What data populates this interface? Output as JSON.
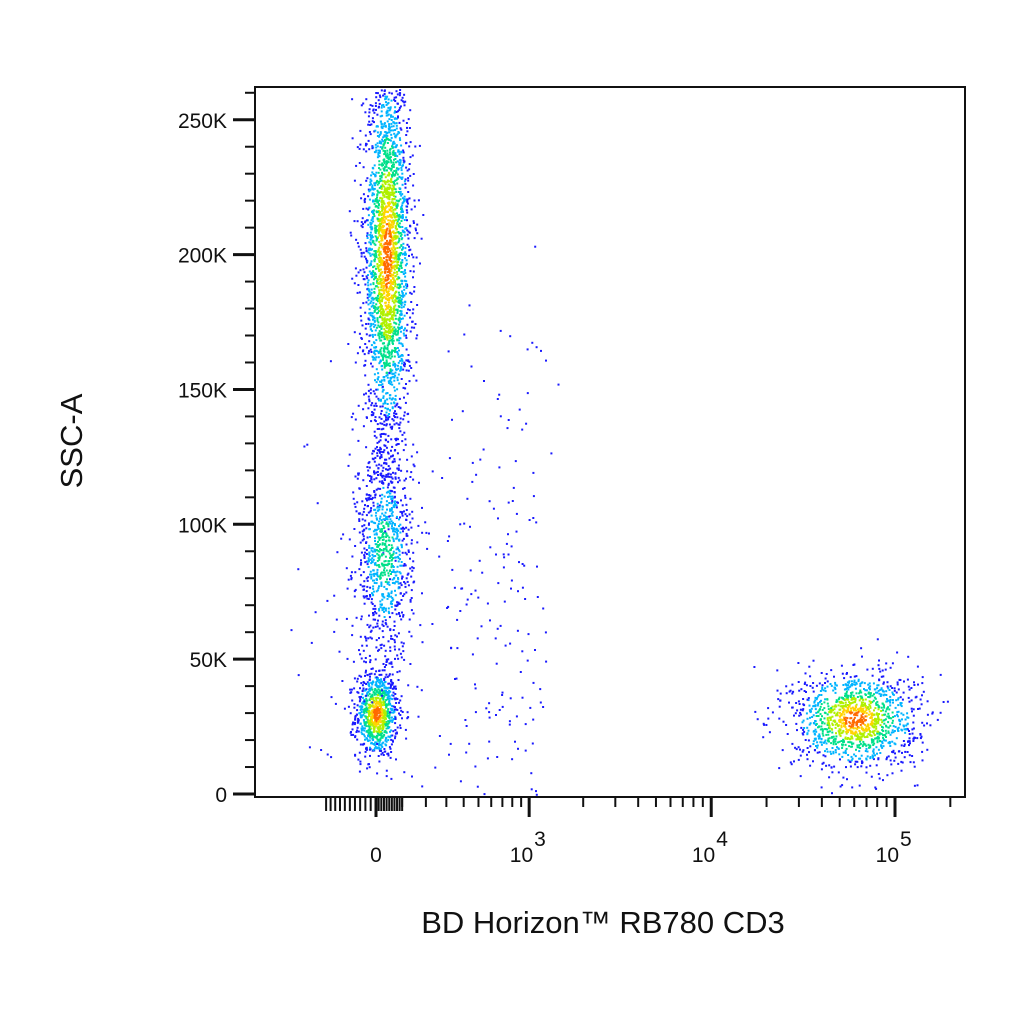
{
  "chart_data": {
    "type": "scatter",
    "title": "",
    "xlabel": "BD Horizon™ RB780 CD3",
    "ylabel": "SSC-A",
    "x_scale": "biexponential",
    "x_tick_labels": [
      {
        "base": "0",
        "exp": "",
        "value": 0
      },
      {
        "base": "10",
        "exp": "3",
        "value": 1000
      },
      {
        "base": "10",
        "exp": "4",
        "value": 10000
      },
      {
        "base": "10",
        "exp": "5",
        "value": 100000
      }
    ],
    "xlim": [
      -300,
      200000
    ],
    "y_scale": "linear",
    "y_tick_labels": [
      {
        "label": "0",
        "value": 0
      },
      {
        "label": "50K",
        "value": 50000
      },
      {
        "label": "100K",
        "value": 100000
      },
      {
        "label": "150K",
        "value": 150000
      },
      {
        "label": "200K",
        "value": 200000
      },
      {
        "label": "250K",
        "value": 250000
      }
    ],
    "ylim": [
      0,
      262144
    ],
    "grid": false,
    "legend": "none",
    "density_colormap": [
      "#1a1aff",
      "#00b4ff",
      "#00e08a",
      "#b0f000",
      "#ffd400",
      "#ff6a00"
    ],
    "populations": [
      {
        "x_center": 0,
        "y_center": 30000,
        "x_spread": 40,
        "y_spread": 8000,
        "count": 900,
        "density": "high"
      },
      {
        "x_center": 40,
        "y_center": 200000,
        "x_spread": 45,
        "y_spread": 35000,
        "count": 2600,
        "density": "high"
      },
      {
        "x_center": 30,
        "y_center": 90000,
        "x_spread": 55,
        "y_spread": 20000,
        "count": 900,
        "density": "medium"
      },
      {
        "x_center": 60000,
        "y_center": 28000,
        "x_spread": 25000,
        "y_spread": 9000,
        "count": 1300,
        "density": "high"
      },
      {
        "x_center": 500,
        "y_center": 60000,
        "x_spread": 400,
        "y_spread": 60000,
        "count": 260,
        "density": "low"
      }
    ]
  }
}
